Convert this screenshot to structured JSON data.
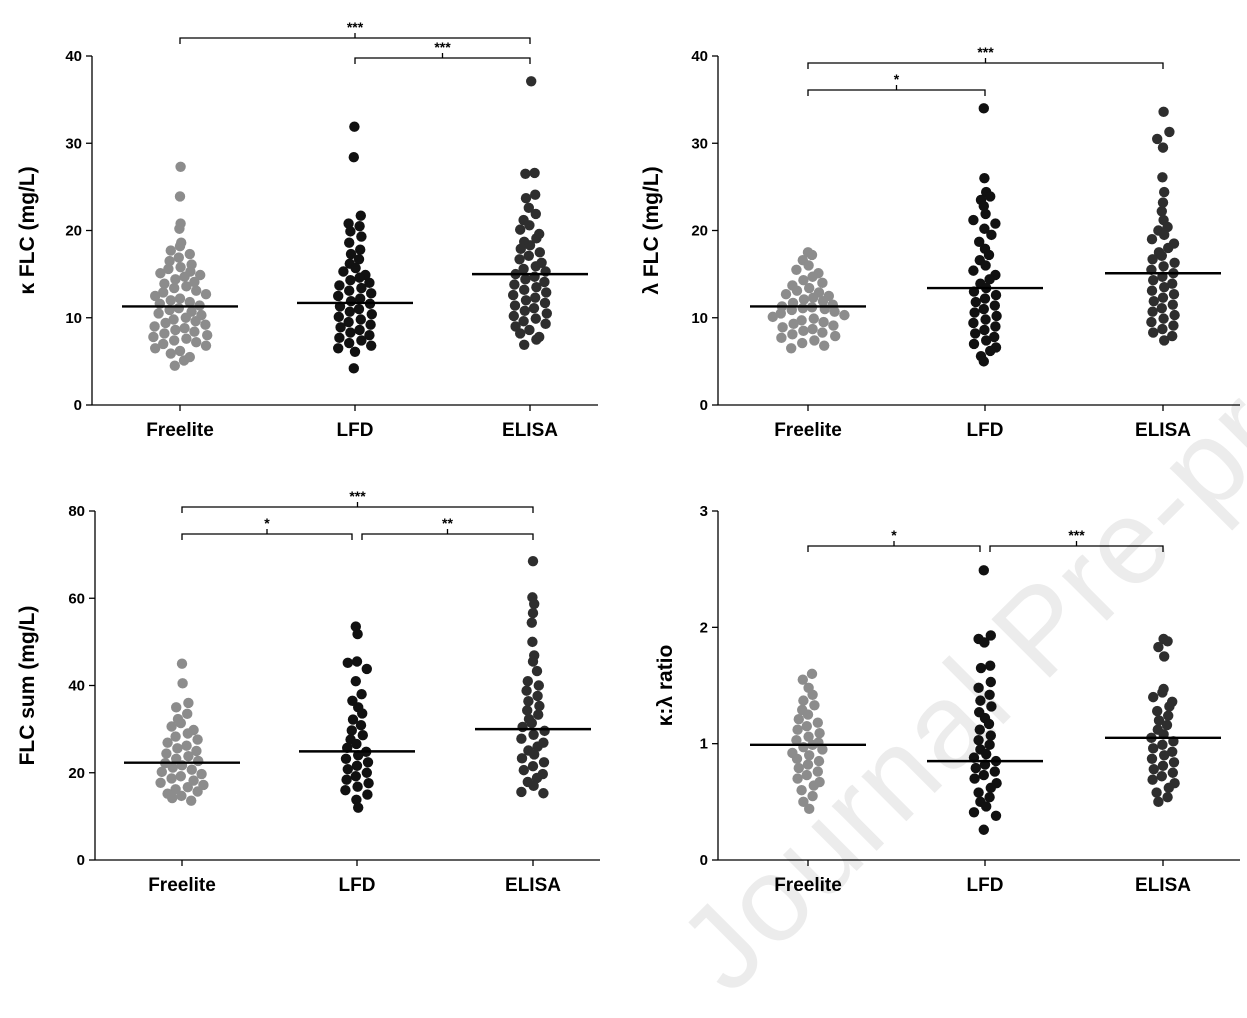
{
  "watermark": "Journal Pre-proof",
  "colors": {
    "freelite": "#8c8c8c",
    "lfd": "#111111",
    "elisa": "#2e2e2e",
    "axis": "#000000"
  },
  "chart_data": [
    {
      "type": "scatter",
      "ylabel": "κ FLC (mg/L)",
      "ylim": [
        0,
        40
      ],
      "yticks": [
        "0",
        "10",
        "20",
        "30",
        "40"
      ],
      "categories": [
        "Freelite",
        "LFD",
        "ELISA"
      ],
      "grid": false,
      "series": [
        {
          "name": "Freelite",
          "median": 11.3,
          "values": [
            27.3,
            23.9,
            20.8,
            20.2,
            18.6,
            18.2,
            17.7,
            17.3,
            16.9,
            16.5,
            16.1,
            15.8,
            15.6,
            15.3,
            15.1,
            14.9,
            14.7,
            14.4,
            14.1,
            13.9,
            13.6,
            13.4,
            13.1,
            12.9,
            12.7,
            12.5,
            12.2,
            12.0,
            11.8,
            11.6,
            11.4,
            11.1,
            10.9,
            10.7,
            10.5,
            10.3,
            10.0,
            9.8,
            9.6,
            9.4,
            9.2,
            9.0,
            8.8,
            8.6,
            8.4,
            8.2,
            8.0,
            7.8,
            7.6,
            7.4,
            7.2,
            7.0,
            6.8,
            6.5,
            6.2,
            5.9,
            5.5,
            5.1,
            4.5
          ]
        },
        {
          "name": "LFD",
          "median": 11.7,
          "values": [
            31.9,
            28.4,
            21.7,
            20.8,
            20.5,
            19.9,
            19.3,
            18.6,
            17.8,
            17.3,
            16.7,
            16.2,
            15.7,
            15.3,
            14.9,
            14.6,
            14.3,
            14.0,
            13.7,
            13.4,
            13.1,
            12.8,
            12.5,
            12.2,
            11.9,
            11.6,
            11.3,
            11.0,
            10.7,
            10.4,
            10.1,
            9.8,
            9.5,
            9.2,
            8.9,
            8.6,
            8.3,
            8.0,
            7.7,
            7.4,
            7.1,
            6.8,
            6.5,
            6.1,
            4.2
          ]
        },
        {
          "name": "ELISA",
          "median": 15.0,
          "values": [
            37.1,
            26.6,
            26.5,
            24.1,
            23.7,
            22.6,
            21.9,
            21.2,
            20.6,
            20.1,
            19.6,
            19.1,
            18.7,
            18.3,
            17.9,
            17.5,
            17.1,
            16.7,
            16.3,
            15.9,
            15.6,
            15.3,
            15.0,
            14.7,
            14.4,
            14.1,
            13.8,
            13.5,
            13.2,
            12.9,
            12.6,
            12.3,
            12.0,
            11.7,
            11.4,
            11.1,
            10.8,
            10.5,
            10.2,
            9.9,
            9.6,
            9.3,
            9.0,
            8.6,
            8.2,
            7.8,
            7.5,
            6.9
          ]
        }
      ],
      "significance": [
        {
          "from": "Freelite",
          "to": "ELISA",
          "label": "***"
        },
        {
          "from": "LFD",
          "to": "ELISA",
          "label": "***"
        }
      ]
    },
    {
      "type": "scatter",
      "ylabel": "λ FLC (mg/L)",
      "ylim": [
        0,
        40
      ],
      "yticks": [
        "0",
        "10",
        "20",
        "30",
        "40"
      ],
      "categories": [
        "Freelite",
        "LFD",
        "ELISA"
      ],
      "grid": false,
      "series": [
        {
          "name": "Freelite",
          "median": 11.3,
          "values": [
            17.5,
            17.2,
            16.6,
            16.0,
            15.5,
            15.1,
            14.7,
            14.3,
            14.0,
            13.7,
            13.4,
            13.1,
            12.9,
            12.7,
            12.5,
            12.3,
            12.1,
            11.9,
            11.7,
            11.5,
            11.3,
            11.2,
            11.1,
            11.0,
            10.9,
            10.7,
            10.5,
            10.3,
            10.1,
            9.9,
            9.7,
            9.5,
            9.3,
            9.1,
            8.9,
            8.7,
            8.5,
            8.3,
            8.1,
            7.9,
            7.7,
            7.4,
            7.1,
            6.8,
            6.5
          ]
        },
        {
          "name": "LFD",
          "median": 13.4,
          "values": [
            34.0,
            26.0,
            24.4,
            23.9,
            23.5,
            22.8,
            21.9,
            21.2,
            20.8,
            20.2,
            19.5,
            18.7,
            17.9,
            17.2,
            16.6,
            16.0,
            15.4,
            14.9,
            14.4,
            13.9,
            13.4,
            13.0,
            12.6,
            12.2,
            11.8,
            11.4,
            11.0,
            10.6,
            10.2,
            9.8,
            9.4,
            9.0,
            8.6,
            8.2,
            7.8,
            7.4,
            7.0,
            6.6,
            6.2,
            5.6,
            5.0
          ]
        },
        {
          "name": "ELISA",
          "median": 15.1,
          "values": [
            33.6,
            31.3,
            30.5,
            29.5,
            26.1,
            24.4,
            23.2,
            22.2,
            21.2,
            20.4,
            20.0,
            19.5,
            19.0,
            18.5,
            18.0,
            17.5,
            17.1,
            16.7,
            16.3,
            15.9,
            15.5,
            15.1,
            14.7,
            14.3,
            13.9,
            13.5,
            13.1,
            12.7,
            12.3,
            11.9,
            11.5,
            11.1,
            10.7,
            10.3,
            9.9,
            9.5,
            9.1,
            8.7,
            8.3,
            7.9,
            7.4
          ]
        }
      ],
      "significance": [
        {
          "from": "Freelite",
          "to": "LFD",
          "label": "*"
        },
        {
          "from": "Freelite",
          "to": "ELISA",
          "label": "***"
        }
      ]
    },
    {
      "type": "scatter",
      "ylabel": "FLC sum  (mg/L)",
      "ylim": [
        0,
        80
      ],
      "yticks": [
        "0",
        "20",
        "40",
        "60",
        "80"
      ],
      "categories": [
        "Freelite",
        "LFD",
        "ELISA"
      ],
      "grid": false,
      "series": [
        {
          "name": "Freelite",
          "median": 22.3,
          "values": [
            45.0,
            40.5,
            36.0,
            35.0,
            33.5,
            32.3,
            31.4,
            30.6,
            29.8,
            29.0,
            28.3,
            27.6,
            26.9,
            26.2,
            25.6,
            25.0,
            24.4,
            23.8,
            23.2,
            22.7,
            22.2,
            21.7,
            21.2,
            20.7,
            20.2,
            19.7,
            19.2,
            18.7,
            18.2,
            17.7,
            17.2,
            16.7,
            16.2,
            15.7,
            15.2,
            14.7,
            14.2,
            13.6
          ]
        },
        {
          "name": "LFD",
          "median": 24.9,
          "values": [
            53.5,
            51.8,
            45.5,
            45.2,
            43.8,
            41.0,
            38.0,
            36.5,
            35.0,
            33.6,
            32.2,
            30.9,
            29.7,
            28.6,
            27.6,
            26.6,
            25.7,
            24.8,
            24.0,
            23.2,
            22.4,
            21.6,
            20.8,
            20.0,
            19.2,
            18.4,
            17.6,
            16.8,
            16.0,
            15.0,
            13.8,
            12.0
          ]
        },
        {
          "name": "ELISA",
          "median": 30.0,
          "values": [
            68.5,
            60.2,
            58.7,
            56.6,
            54.4,
            50.0,
            46.9,
            45.5,
            43.3,
            41.0,
            40.0,
            38.8,
            37.6,
            36.4,
            35.3,
            34.3,
            33.3,
            32.3,
            31.4,
            30.5,
            29.6,
            28.7,
            27.8,
            26.9,
            26.0,
            25.1,
            24.2,
            23.3,
            22.4,
            21.5,
            20.6,
            19.7,
            18.8,
            17.9,
            17.0,
            15.6,
            15.3
          ]
        }
      ],
      "significance": [
        {
          "from": "Freelite",
          "to": "ELISA",
          "label": "***"
        },
        {
          "from": "Freelite",
          "to": "LFD",
          "label": "*"
        },
        {
          "from": "LFD",
          "to": "ELISA",
          "label": "**"
        }
      ]
    },
    {
      "type": "scatter",
      "ylabel": "κ:λ ratio",
      "ylim": [
        0,
        3
      ],
      "yticks": [
        "0",
        "1",
        "2",
        "3"
      ],
      "categories": [
        "Freelite",
        "LFD",
        "ELISA"
      ],
      "grid": false,
      "series": [
        {
          "name": "Freelite",
          "median": 0.99,
          "values": [
            1.6,
            1.55,
            1.48,
            1.42,
            1.37,
            1.33,
            1.29,
            1.25,
            1.21,
            1.18,
            1.15,
            1.12,
            1.09,
            1.06,
            1.03,
            1.01,
            0.99,
            0.97,
            0.95,
            0.92,
            0.9,
            0.87,
            0.85,
            0.82,
            0.79,
            0.76,
            0.73,
            0.7,
            0.67,
            0.64,
            0.6,
            0.55,
            0.5,
            0.44
          ]
        },
        {
          "name": "LFD",
          "median": 0.85,
          "values": [
            2.49,
            1.93,
            1.9,
            1.87,
            1.67,
            1.65,
            1.53,
            1.48,
            1.42,
            1.37,
            1.32,
            1.27,
            1.22,
            1.17,
            1.12,
            1.07,
            1.03,
            0.99,
            0.95,
            0.91,
            0.88,
            0.85,
            0.82,
            0.79,
            0.76,
            0.73,
            0.7,
            0.66,
            0.62,
            0.58,
            0.54,
            0.5,
            0.46,
            0.41,
            0.38,
            0.26
          ]
        },
        {
          "name": "ELISA",
          "median": 1.05,
          "values": [
            1.9,
            1.88,
            1.83,
            1.75,
            1.47,
            1.44,
            1.4,
            1.36,
            1.32,
            1.28,
            1.24,
            1.2,
            1.16,
            1.12,
            1.08,
            1.05,
            1.02,
            0.99,
            0.96,
            0.93,
            0.9,
            0.87,
            0.84,
            0.81,
            0.78,
            0.75,
            0.72,
            0.69,
            0.66,
            0.62,
            0.58,
            0.54,
            0.5
          ]
        }
      ],
      "significance": [
        {
          "from": "Freelite",
          "to": "LFD",
          "label": "*"
        },
        {
          "from": "LFD",
          "to": "ELISA",
          "label": "***"
        }
      ]
    }
  ]
}
